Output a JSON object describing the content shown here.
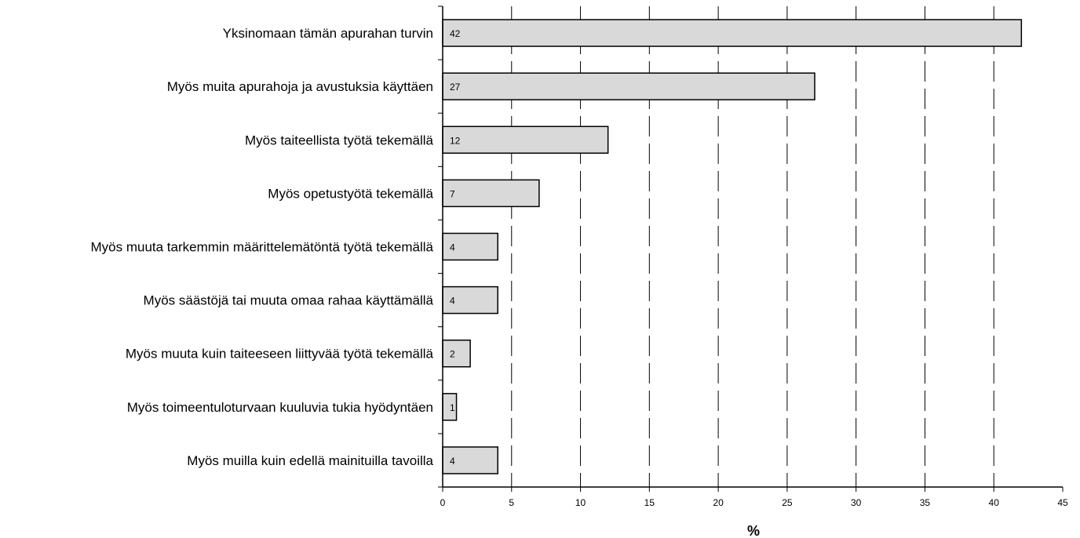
{
  "chart_data": {
    "type": "bar",
    "orientation": "horizontal",
    "categories": [
      "Yksinomaan tämän apurahan turvin",
      "Myös muita apurahoja ja avustuksia käyttäen",
      "Myös taiteellista työtä tekemällä",
      "Myös opetustyötä tekemällä",
      "Myös muuta tarkemmin määrittelemätöntä työtä tekemällä",
      "Myös säästöjä tai muuta omaa rahaa käyttämällä",
      "Myös muuta kuin taiteeseen liittyvää työtä tekemällä",
      "Myös toimeentuloturvaan kuuluvia tukia hyödyntäen",
      "Myös muilla kuin edellä mainituilla tavoilla"
    ],
    "values": [
      42,
      27,
      12,
      7,
      4,
      4,
      2,
      1,
      4
    ],
    "data_labels": [
      "42",
      "27",
      "12",
      "7",
      "4",
      "4",
      "2",
      "1",
      "4"
    ],
    "xlabel": "%",
    "ylabel": "",
    "xlim": [
      0,
      45
    ],
    "x_ticks": [
      0,
      5,
      10,
      15,
      20,
      25,
      30,
      35,
      40,
      45
    ],
    "x_tick_labels": [
      "0",
      "5",
      "10",
      "15",
      "20",
      "25",
      "30",
      "35",
      "40",
      "45"
    ],
    "grid": "vertical dashed",
    "legend": "none",
    "bar_color": "#d9d9d9",
    "bar_edge_color": "#000000"
  }
}
